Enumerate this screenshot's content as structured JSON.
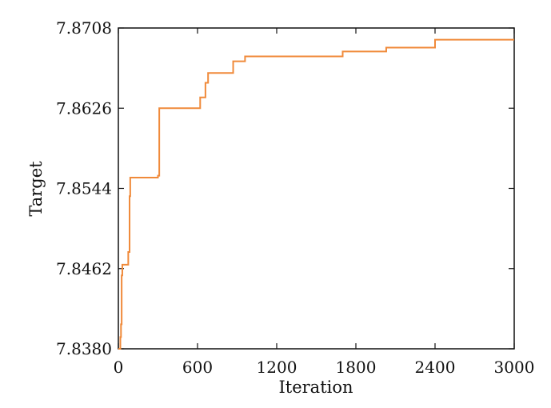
{
  "chart_data": {
    "type": "line",
    "title": "",
    "xlabel": "Iteration",
    "ylabel": "Target",
    "xlim": [
      0,
      3000
    ],
    "ylim": [
      7.838,
      7.8708
    ],
    "xticks": [
      0,
      600,
      1200,
      1800,
      2400,
      3000
    ],
    "xtick_labels": [
      "0",
      "600",
      "1200",
      "1800",
      "2400",
      "3000"
    ],
    "yticks": [
      7.838,
      7.8462,
      7.8544,
      7.8626,
      7.8708
    ],
    "ytick_labels": [
      "7.8380",
      "7.8462",
      "7.8544",
      "7.8626",
      "7.8708"
    ],
    "grid": false,
    "line_color": "#f08a3a",
    "series": [
      {
        "step": true,
        "x": [
          0,
          15,
          20,
          25,
          30,
          75,
          85,
          90,
          300,
          310,
          620,
          660,
          680,
          870,
          960,
          1700,
          2030,
          2400,
          3000
        ],
        "y": [
          7.838,
          7.8392,
          7.8405,
          7.8455,
          7.8466,
          7.8479,
          7.8536,
          7.8555,
          7.8557,
          7.8626,
          7.8637,
          7.8652,
          7.8662,
          7.8674,
          7.8679,
          7.8684,
          7.8688,
          7.8696,
          7.8696
        ]
      }
    ]
  }
}
